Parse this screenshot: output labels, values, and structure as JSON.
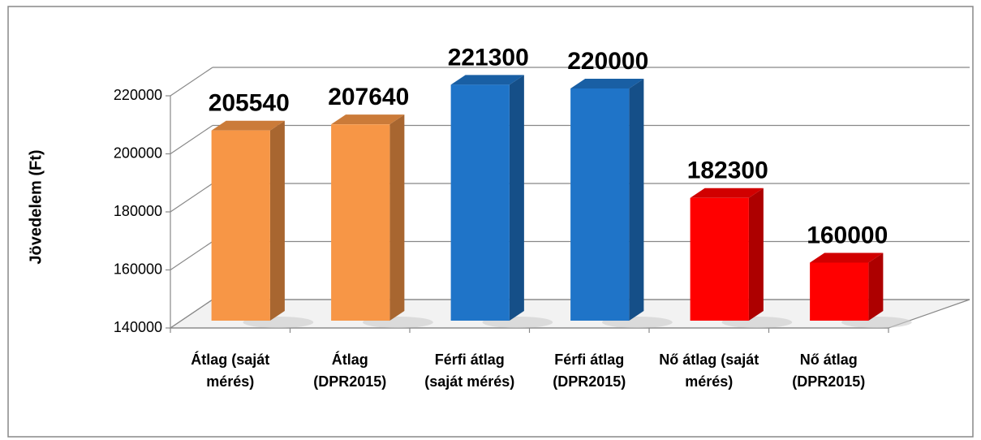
{
  "chart_data": {
    "type": "bar3d",
    "y_label": "Jövedelem (Ft)",
    "categories": [
      "Átlag (saját mérés)",
      "Átlag (DPR2015)",
      "Férfi átlag (saját mérés)",
      "Férfi átlag (DPR2015)",
      "Nő átlag (saját mérés)",
      "Nő átlag (DPR2015)"
    ],
    "values": [
      205540,
      207640,
      221300,
      220000,
      182300,
      160000
    ],
    "colors": [
      "#f79646",
      "#f79646",
      "#1f74c8",
      "#1f74c8",
      "#ff0000",
      "#ff0000"
    ],
    "ylim": [
      140000,
      220000
    ],
    "yticks": [
      140000,
      160000,
      180000,
      200000,
      220000
    ],
    "grid": true
  }
}
